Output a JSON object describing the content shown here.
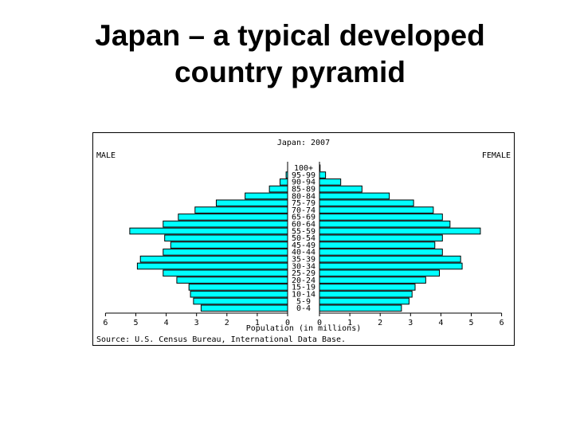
{
  "slide": {
    "title_line1": "Japan – a typical developed",
    "title_line2": "country pyramid"
  },
  "chart_data": {
    "type": "bar",
    "orientation": "horizontal-pyramid",
    "title": "Japan: 2007",
    "left_label": "MALE",
    "right_label": "FEMALE",
    "xlabel": "Population (in millions)",
    "source": "Source: U.S. Census Bureau, International Data Base.",
    "xlim": [
      0,
      6
    ],
    "left_ticks": [
      "6",
      "5",
      "4",
      "3",
      "2",
      "1",
      "0"
    ],
    "right_ticks": [
      "0",
      "1",
      "2",
      "3",
      "4",
      "5",
      "6"
    ],
    "bar_color": "#00ffff",
    "categories": [
      "100+",
      "95-99",
      "90-94",
      "85-89",
      "80-84",
      "75-79",
      "70-74",
      "65-69",
      "60-64",
      "55-59",
      "50-54",
      "45-49",
      "40-44",
      "35-39",
      "30-34",
      "25-29",
      "20-24",
      "15-19",
      "10-14",
      "5-9",
      "0-4"
    ],
    "series": [
      {
        "name": "MALE",
        "values": [
          0.0,
          0.05,
          0.25,
          0.6,
          1.4,
          2.35,
          3.05,
          3.6,
          4.1,
          5.2,
          4.05,
          3.85,
          4.1,
          4.85,
          4.95,
          4.1,
          3.65,
          3.25,
          3.2,
          3.1,
          2.85
        ]
      },
      {
        "name": "FEMALE",
        "values": [
          0.02,
          0.2,
          0.7,
          1.4,
          2.3,
          3.1,
          3.75,
          4.05,
          4.3,
          5.3,
          4.05,
          3.8,
          4.05,
          4.65,
          4.7,
          3.95,
          3.5,
          3.15,
          3.05,
          2.95,
          2.7
        ]
      }
    ]
  }
}
